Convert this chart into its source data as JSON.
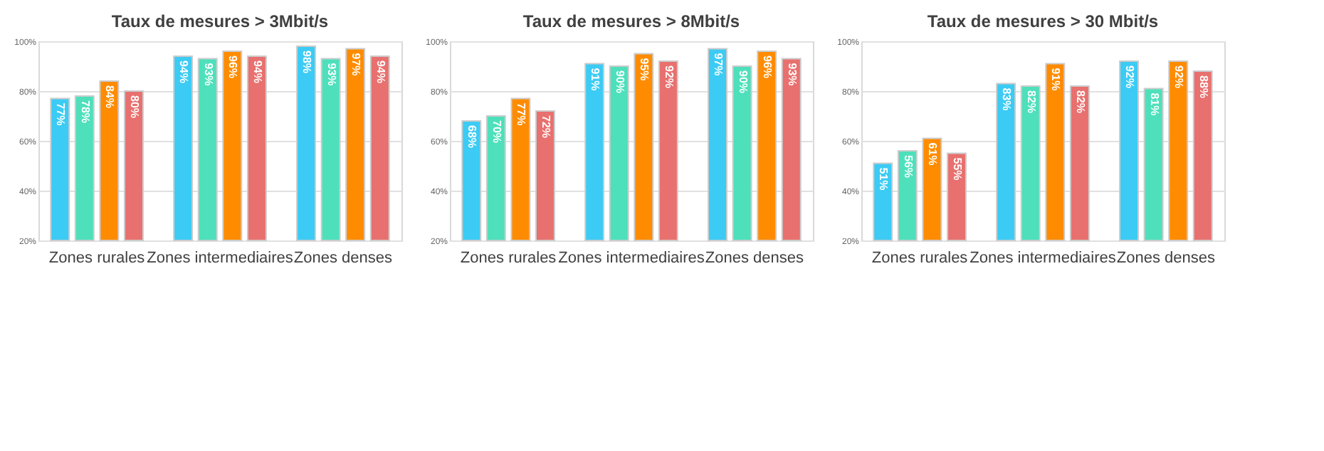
{
  "chart_data": [
    {
      "type": "bar",
      "title": "Taux de mesures > 3Mbit/s",
      "categories": [
        "Zones rurales",
        "Zones intermediaires",
        "Zones denses"
      ],
      "ylim": [
        20,
        100
      ],
      "yticks": [
        {
          "value": 20,
          "label": "20%"
        },
        {
          "value": 40,
          "label": "40%"
        },
        {
          "value": 60,
          "label": "60%"
        },
        {
          "value": 80,
          "label": "80%"
        },
        {
          "value": 100,
          "label": "100%"
        }
      ],
      "grid": "y",
      "series": [
        {
          "color": "#3ccbf4",
          "values": [
            77,
            94,
            98
          ],
          "value_labels": [
            "77%",
            "94%",
            "98%"
          ]
        },
        {
          "color": "#4de0bb",
          "values": [
            78,
            93,
            93
          ],
          "value_labels": [
            "78%",
            "93%",
            "93%"
          ]
        },
        {
          "color": "#ff8c00",
          "values": [
            84,
            96,
            97
          ],
          "value_labels": [
            "84%",
            "96%",
            "97%"
          ]
        },
        {
          "color": "#e8706e",
          "values": [
            80,
            94,
            94
          ],
          "value_labels": [
            "80%",
            "94%",
            "94%"
          ]
        }
      ]
    },
    {
      "type": "bar",
      "title": "Taux de mesures > 8Mbit/s",
      "categories": [
        "Zones rurales",
        "Zones intermediaires",
        "Zones denses"
      ],
      "ylim": [
        20,
        100
      ],
      "yticks": [
        {
          "value": 20,
          "label": "20%"
        },
        {
          "value": 40,
          "label": "40%"
        },
        {
          "value": 60,
          "label": "60%"
        },
        {
          "value": 80,
          "label": "80%"
        },
        {
          "value": 100,
          "label": "100%"
        }
      ],
      "grid": "y",
      "series": [
        {
          "color": "#3ccbf4",
          "values": [
            68,
            91,
            97
          ],
          "value_labels": [
            "68%",
            "91%",
            "97%"
          ]
        },
        {
          "color": "#4de0bb",
          "values": [
            70,
            90,
            90
          ],
          "value_labels": [
            "70%",
            "90%",
            "90%"
          ]
        },
        {
          "color": "#ff8c00",
          "values": [
            77,
            95,
            96
          ],
          "value_labels": [
            "77%",
            "95%",
            "96%"
          ]
        },
        {
          "color": "#e8706e",
          "values": [
            72,
            92,
            93
          ],
          "value_labels": [
            "72%",
            "92%",
            "93%"
          ]
        }
      ]
    },
    {
      "type": "bar",
      "title": "Taux de mesures > 30 Mbit/s",
      "categories": [
        "Zones rurales",
        "Zones intermediaires",
        "Zones denses"
      ],
      "ylim": [
        20,
        100
      ],
      "yticks": [
        {
          "value": 20,
          "label": "20%"
        },
        {
          "value": 40,
          "label": "40%"
        },
        {
          "value": 60,
          "label": "60%"
        },
        {
          "value": 80,
          "label": "80%"
        },
        {
          "value": 100,
          "label": "100%"
        }
      ],
      "grid": "y",
      "series": [
        {
          "color": "#3ccbf4",
          "values": [
            51,
            83,
            92
          ],
          "value_labels": [
            "51%",
            "83%",
            "92%"
          ]
        },
        {
          "color": "#4de0bb",
          "values": [
            56,
            82,
            81
          ],
          "value_labels": [
            "56%",
            "82%",
            "81%"
          ]
        },
        {
          "color": "#ff8c00",
          "values": [
            61,
            91,
            92
          ],
          "value_labels": [
            "61%",
            "91%",
            "92%"
          ]
        },
        {
          "color": "#e8706e",
          "values": [
            55,
            82,
            88
          ],
          "value_labels": [
            "55%",
            "82%",
            "88%"
          ]
        }
      ]
    }
  ]
}
